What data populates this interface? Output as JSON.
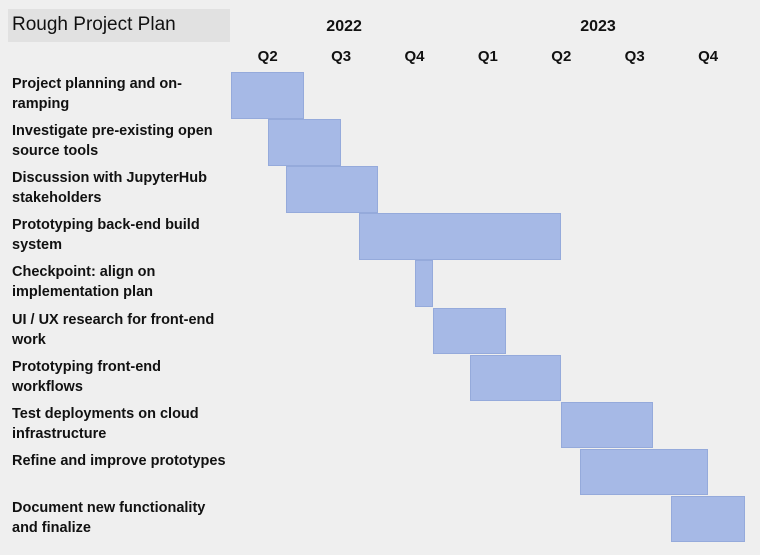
{
  "title": "Rough Project Plan",
  "chart_data": {
    "type": "gantt",
    "years": [
      {
        "label": "2022",
        "quarters": [
          "Q2",
          "Q3",
          "Q4"
        ]
      },
      {
        "label": "2023",
        "quarters": [
          "Q1",
          "Q2",
          "Q3",
          "Q4"
        ]
      }
    ],
    "quarters": [
      "2022 Q2",
      "2022 Q3",
      "2022 Q4",
      "2023 Q1",
      "2023 Q2",
      "2023 Q3",
      "2023 Q4"
    ],
    "tasks": [
      {
        "label": "Project planning and on-ramping",
        "start": 0.0,
        "end": 1.0
      },
      {
        "label": "Investigate pre-existing open source tools",
        "start": 0.5,
        "end": 1.5
      },
      {
        "label": "Discussion with JupyterHub stakeholders",
        "start": 0.75,
        "end": 2.0
      },
      {
        "label": "Prototyping back-end build system",
        "start": 1.75,
        "end": 4.5
      },
      {
        "label": "Checkpoint: align on implementation plan",
        "start": 2.5,
        "end": 2.75
      },
      {
        "label": "UI / UX research for front-end work",
        "start": 2.75,
        "end": 3.75
      },
      {
        "label": "Prototyping front-end workflows",
        "start": 3.25,
        "end": 4.5
      },
      {
        "label": "Test deployments on cloud infrastructure",
        "start": 4.5,
        "end": 5.75
      },
      {
        "label": "Refine and improve prototypes",
        "start": 4.75,
        "end": 6.5
      },
      {
        "label": "Document new functionality and finalize",
        "start": 6.0,
        "end": 7.0
      }
    ],
    "bar_color": "#a6b9e6",
    "background_color": "#efefef"
  }
}
